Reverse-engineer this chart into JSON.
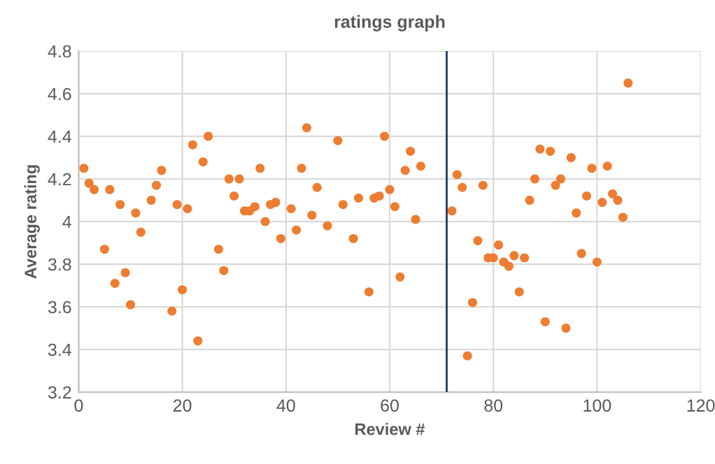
{
  "chart_data": {
    "type": "scatter",
    "title": "ratings graph",
    "xlabel": "Review #",
    "ylabel": "Average rating",
    "series": [
      {
        "color": "#ed7d31",
        "x": [
          1,
          2,
          3,
          5,
          6,
          7,
          8,
          9,
          10,
          11,
          12,
          14,
          15,
          16,
          18,
          19,
          20,
          21,
          22,
          23,
          24,
          25,
          27,
          28,
          29,
          30,
          31,
          32,
          33,
          34,
          35,
          36,
          37,
          38,
          39,
          41,
          42,
          43,
          44,
          45,
          46,
          48,
          50,
          51,
          53,
          54,
          56,
          57,
          58,
          59,
          60,
          61,
          62,
          63,
          64,
          65,
          66,
          72,
          73,
          74,
          75,
          76,
          77,
          78,
          79,
          80,
          81,
          82,
          83,
          84,
          85,
          86,
          87,
          88,
          89,
          90,
          91,
          92,
          93,
          94,
          95,
          96,
          97,
          98,
          99,
          100,
          101,
          102,
          103,
          104,
          105,
          106
        ],
        "values": [
          4.25,
          4.18,
          4.15,
          3.87,
          4.15,
          3.71,
          4.08,
          3.76,
          3.61,
          4.04,
          3.95,
          4.1,
          4.17,
          4.24,
          3.58,
          4.08,
          3.68,
          4.06,
          4.36,
          3.44,
          4.28,
          4.4,
          3.87,
          3.77,
          4.2,
          4.12,
          4.2,
          4.05,
          4.05,
          4.07,
          4.25,
          4.0,
          4.08,
          4.09,
          3.92,
          4.06,
          3.96,
          4.25,
          4.44,
          4.03,
          4.16,
          3.98,
          4.38,
          4.08,
          3.92,
          4.11,
          3.67,
          4.11,
          4.12,
          4.4,
          4.15,
          4.07,
          3.74,
          4.24,
          4.33,
          4.01,
          4.26,
          4.05,
          4.22,
          4.16,
          3.37,
          3.62,
          3.91,
          4.17,
          3.83,
          3.83,
          3.89,
          3.81,
          3.79,
          3.84,
          3.67,
          3.83,
          4.1,
          4.2,
          4.34,
          3.53,
          4.33,
          4.17,
          4.2,
          3.5,
          4.3,
          4.04,
          3.85,
          4.12,
          4.25,
          3.81,
          4.09,
          4.26,
          4.13,
          4.1,
          4.02,
          4.65
        ]
      }
    ],
    "xlim": [
      0,
      120
    ],
    "xticks": [
      0,
      20,
      40,
      60,
      80,
      100,
      120
    ],
    "ylim": [
      3.2,
      4.8
    ],
    "yticks": [
      3.2,
      3.4,
      3.6,
      3.8,
      4,
      4.2,
      4.4,
      4.6,
      4.8
    ],
    "ref_lines": [
      {
        "axis": "x",
        "value": 71,
        "color": "#1f3864"
      }
    ],
    "grid": true,
    "marker": "circle"
  }
}
